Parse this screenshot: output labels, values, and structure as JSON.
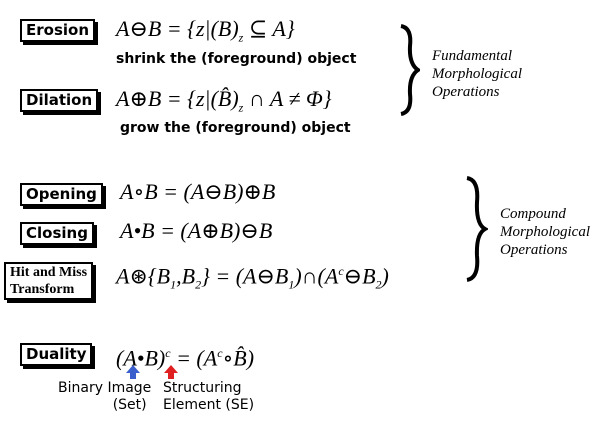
{
  "operations": {
    "erosion": {
      "label": "Erosion",
      "formula": "A⊖B = {z|(B)z ⊆ A}",
      "desc": "shrink the (foreground) object"
    },
    "dilation": {
      "label": "Dilation",
      "formula": "A⊕B = {z|(B̂)z ∩ A ≠ Φ}",
      "desc": "grow the (foreground) object"
    },
    "opening": {
      "label": "Opening",
      "formula": "A∘B = (A⊖B)⊕B"
    },
    "closing": {
      "label": "Closing",
      "formula": "A•B = (A⊕B)⊖B"
    },
    "hitmiss": {
      "label_line1": "Hit and Miss",
      "label_line2": "Transform",
      "formula": "A⊛{B1,B2} = (A⊖B1)∩(Ac⊖B2)"
    },
    "duality": {
      "label": "Duality",
      "formula": "(A•B)c = (Ac∘B̂)"
    }
  },
  "groups": {
    "fundamental": [
      "Fundamental",
      "Morphological",
      "Operations"
    ],
    "compound": [
      "Compound",
      "Morphological",
      "Operations"
    ]
  },
  "annotations": {
    "binary_image": [
      "Binary Image",
      "(Set)"
    ],
    "structuring_element": [
      "Structuring",
      "Element (SE)"
    ]
  },
  "colors": {
    "arrow_blue": "#3a5fcd",
    "arrow_red": "#e02020"
  }
}
